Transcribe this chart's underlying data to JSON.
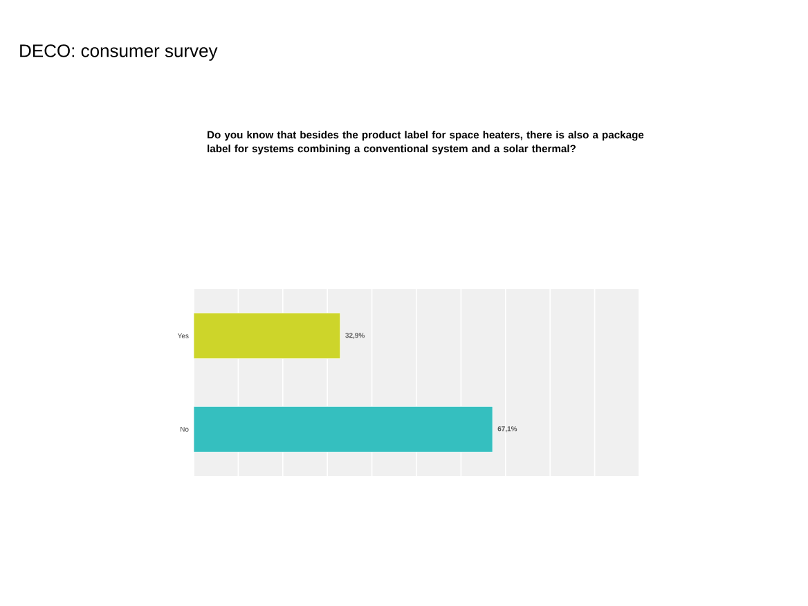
{
  "chart_data": {
    "type": "bar",
    "orientation": "horizontal",
    "title": "DECO: consumer survey",
    "subtitle": "Do you know that besides the product label for space heaters, there is also a package label for systems combining a conventional system and a solar thermal?",
    "categories": [
      "Yes",
      "No"
    ],
    "values": [
      32.9,
      67.1
    ],
    "colors": [
      "#cdd52a",
      "#35bfbf"
    ],
    "value_labels": [
      "32,9%",
      "67,1%"
    ],
    "xlim": [
      0,
      100
    ],
    "xticks": [
      {
        "value": 0,
        "label": null
      },
      {
        "value": 10,
        "label": null
      },
      {
        "value": 20,
        "label": null
      },
      {
        "value": 30,
        "label": null
      },
      {
        "value": 40,
        "label": null
      },
      {
        "value": 50,
        "label": null
      },
      {
        "value": 60,
        "label": null
      },
      {
        "value": 70,
        "label": null
      },
      {
        "value": 80,
        "label": null
      },
      {
        "value": 90,
        "label": null
      },
      {
        "value": 100,
        "label": null
      }
    ],
    "grid": "x",
    "tick_labels": "y"
  }
}
